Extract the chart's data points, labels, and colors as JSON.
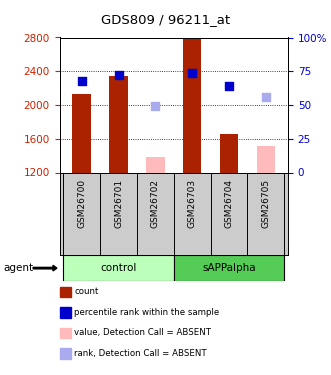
{
  "title": "GDS809 / 96211_at",
  "categories": [
    "GSM26700",
    "GSM26701",
    "GSM26702",
    "GSM26703",
    "GSM26704",
    "GSM26705"
  ],
  "ylim_left": [
    1200,
    2800
  ],
  "ylim_right": [
    0,
    100
  ],
  "yticks_left": [
    1200,
    1600,
    2000,
    2400,
    2800
  ],
  "yticks_right": [
    0,
    25,
    50,
    75,
    100
  ],
  "bar_values": [
    2130,
    2340,
    null,
    2790,
    1660,
    null
  ],
  "bar_absent_values": [
    null,
    null,
    1380,
    null,
    null,
    1520
  ],
  "dot_values": [
    2280,
    2350,
    null,
    2380,
    2220,
    null
  ],
  "dot_absent_values": [
    null,
    null,
    1990,
    null,
    null,
    2090
  ],
  "bar_color": "#aa2200",
  "bar_absent_color": "#ffbbbb",
  "dot_color": "#0000cc",
  "dot_absent_color": "#aaaaee",
  "left_axis_color": "#cc2200",
  "right_axis_color": "#0000cc",
  "group1_color": "#bbffbb",
  "group2_color": "#55cc55",
  "label_bg_color": "#cccccc",
  "legend_items": [
    {
      "label": "count",
      "color": "#aa2200"
    },
    {
      "label": "percentile rank within the sample",
      "color": "#0000cc"
    },
    {
      "label": "value, Detection Call = ABSENT",
      "color": "#ffbbbb"
    },
    {
      "label": "rank, Detection Call = ABSENT",
      "color": "#aaaaee"
    }
  ]
}
